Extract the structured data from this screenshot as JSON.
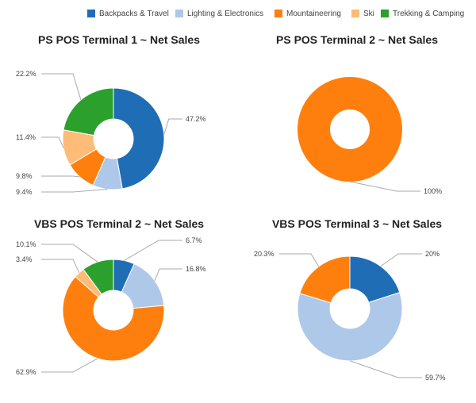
{
  "colors": {
    "Backpacks & Travel": "#1f6eb5",
    "Lighting & Electronics": "#aec8ea",
    "Mountaineering": "#ff7f0e",
    "Ski": "#ffbb78",
    "Trekking & Camping": "#2ca02c"
  },
  "legend": [
    "Backpacks & Travel",
    "Lighting & Electronics",
    "Mountaineering",
    "Ski",
    "Trekking & Camping"
  ],
  "chart_data": [
    {
      "type": "pie",
      "title": "PS POS Terminal 1 ~ Net Sales",
      "slices": [
        {
          "category": "Backpacks & Travel",
          "value": 47.2,
          "label": "47.2%"
        },
        {
          "category": "Lighting & Electronics",
          "value": 9.4,
          "label": "9.4%"
        },
        {
          "category": "Mountaineering",
          "value": 9.8,
          "label": "9.8%"
        },
        {
          "category": "Ski",
          "value": 11.4,
          "label": "11.4%"
        },
        {
          "category": "Trekking & Camping",
          "value": 22.2,
          "label": "22.2%"
        }
      ]
    },
    {
      "type": "pie",
      "title": "PS POS Terminal 2 ~ Net Sales",
      "slices": [
        {
          "category": "Mountaineering",
          "value": 100,
          "label": "100%"
        }
      ]
    },
    {
      "type": "pie",
      "title": "VBS POS Terminal 2 ~ Net Sales",
      "slices": [
        {
          "category": "Backpacks & Travel",
          "value": 6.7,
          "label": "6.7%"
        },
        {
          "category": "Lighting & Electronics",
          "value": 16.8,
          "label": "16.8%"
        },
        {
          "category": "Mountaineering",
          "value": 62.9,
          "label": "62.9%"
        },
        {
          "category": "Ski",
          "value": 3.4,
          "label": "3.4%"
        },
        {
          "category": "Trekking & Camping",
          "value": 10.1,
          "label": "10.1%"
        }
      ]
    },
    {
      "type": "pie",
      "title": "VBS POS Terminal 3 ~ Net Sales",
      "slices": [
        {
          "category": "Backpacks & Travel",
          "value": 20,
          "label": "20%"
        },
        {
          "category": "Lighting & Electronics",
          "value": 59.7,
          "label": "59.7%"
        },
        {
          "category": "Mountaineering",
          "value": 20.3,
          "label": "20.3%"
        }
      ]
    }
  ]
}
